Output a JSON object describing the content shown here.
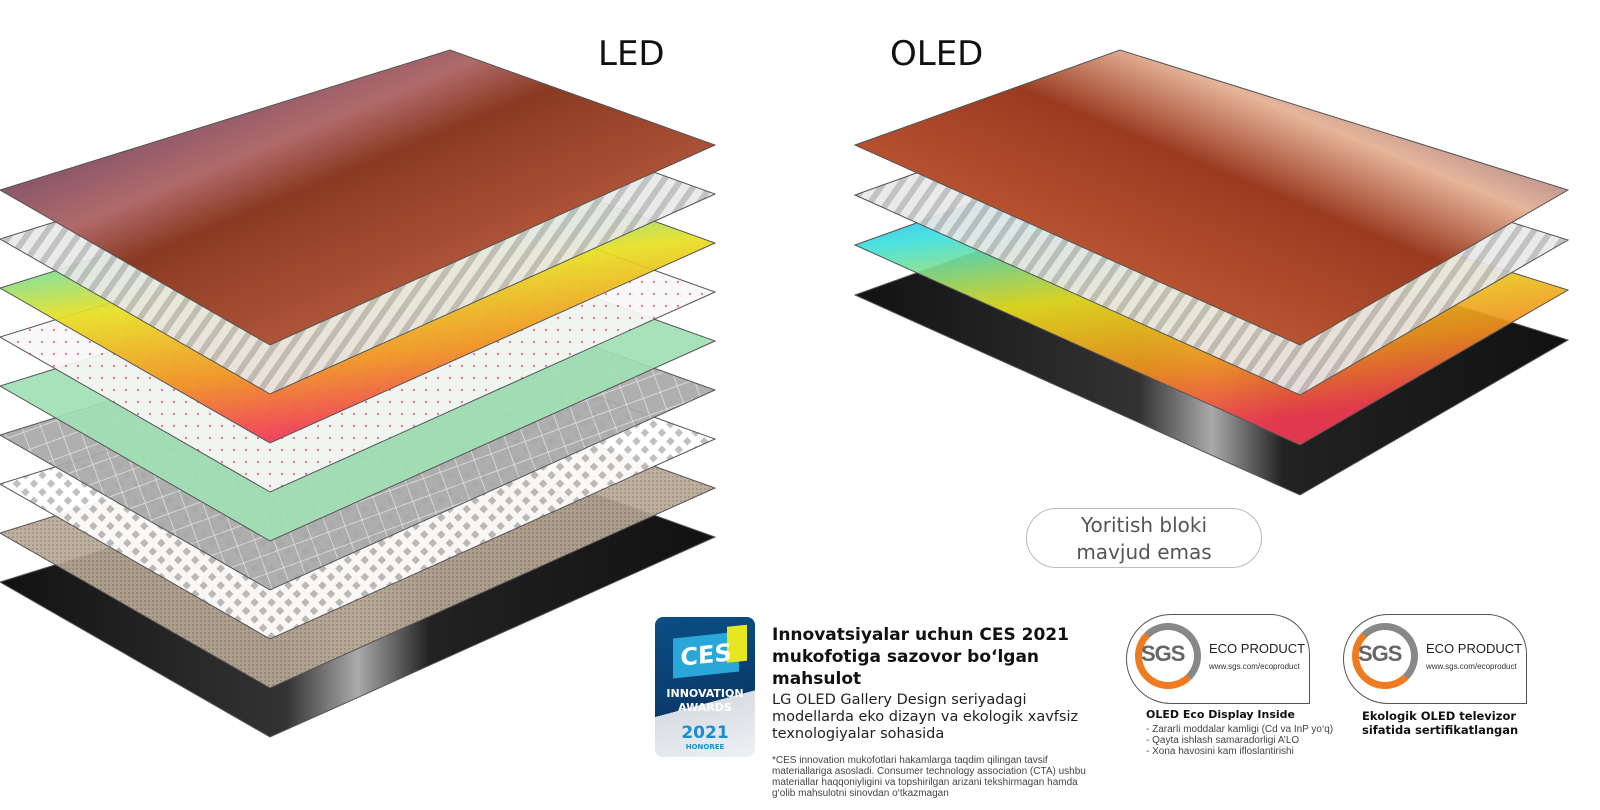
{
  "titles": {
    "led": "LED",
    "oled": "OLED"
  },
  "no_backlight_label": [
    "Yoritish bloki",
    "mavjud emas"
  ],
  "led_layers": [
    "image",
    "stripes",
    "rainbow",
    "dots",
    "green",
    "grid",
    "lattice",
    "beige",
    "black"
  ],
  "oled_layers": [
    "image",
    "stripes",
    "rainbow",
    "black"
  ],
  "ces_badge": {
    "logo": "CES",
    "line1": "INNOVATION",
    "line2": "AWARDS",
    "year": "2021",
    "honoree": "HONOREE"
  },
  "award": {
    "heading_line1": "Innovatsiyalar uchun CES 2021",
    "heading_line2": "mukofotiga sazovor bo‘lgan mahsulot",
    "subtitle": "LG OLED Gallery Design seriyadagi modellarda eko dizayn va ekologik xavfsiz texnologiyalar sohasida",
    "note": "*CES  innovation mukofotlari hakamlarga taqdim qilingan tavsif materiallariga asosladi. Consumer technology association (CTA) ushbu materiallar haqqoniyligini va topshirilgan arizani tekshirmagan hamda g‘olib mahsulotni sinovdan o‘tkazmagan"
  },
  "sgs": [
    {
      "mark": "SGS",
      "label": "ECO PRODUCT",
      "url": "www.sgs.com/ecoproduct",
      "title": "OLED Eco Display Inside",
      "bullets": [
        "- Zararli moddalar kamligi (Cd va InP yo‘q)",
        "- Qayta ishlash samaradorligi A’LO",
        "- Xona havosini kam ifloslantirishi"
      ]
    },
    {
      "mark": "SGS",
      "label": "ECO PRODUCT",
      "url": "www.sgs.com/ecoproduct",
      "title": "Ekologik OLED televizor sifatida sertifikatlangan"
    }
  ],
  "colors": {
    "sgs_orange": "#f07a1f",
    "ces_blue": "#0a4f85"
  }
}
